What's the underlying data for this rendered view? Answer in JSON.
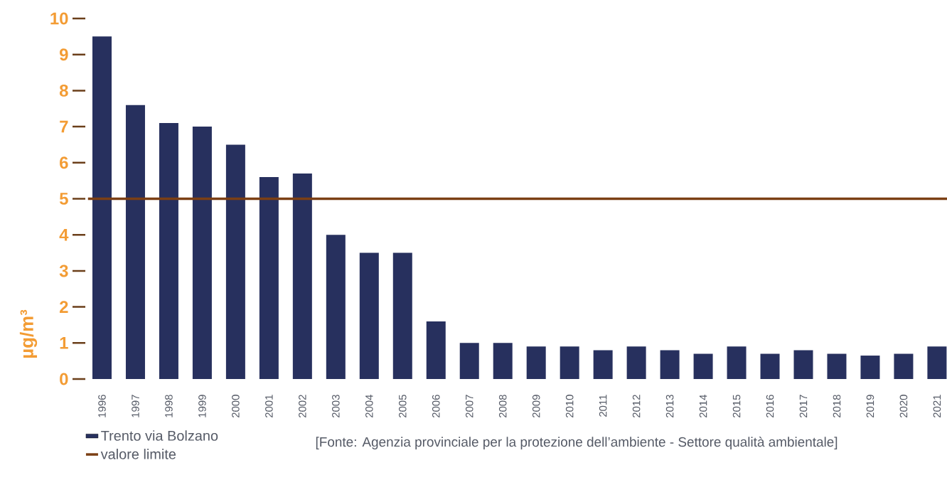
{
  "chart_data": {
    "type": "bar",
    "ylabel": "µg/m³",
    "categories": [
      "1996",
      "1997",
      "1998",
      "1999",
      "2000",
      "2001",
      "2002",
      "2003",
      "2004",
      "2005",
      "2006",
      "2007",
      "2008",
      "2009",
      "2010",
      "2011",
      "2012",
      "2013",
      "2014",
      "2015",
      "2016",
      "2017",
      "2018",
      "2019",
      "2020",
      "2021"
    ],
    "series": [
      {
        "name": "Trento via Bolzano",
        "color": "#27305e",
        "values": [
          9.5,
          7.6,
          7.1,
          7.0,
          6.5,
          5.6,
          5.7,
          4.0,
          3.5,
          3.5,
          1.6,
          1.0,
          1.0,
          0.9,
          0.9,
          0.8,
          0.9,
          0.8,
          0.7,
          0.9,
          0.7,
          0.8,
          0.7,
          0.65,
          0.7,
          0.9
        ]
      }
    ],
    "ylim": [
      0,
      10
    ],
    "yticks": [
      0,
      1,
      2,
      3,
      4,
      5,
      6,
      7,
      8,
      9,
      10
    ],
    "ref_lines": [
      {
        "axis": "y",
        "value": 5,
        "label": "valore limite",
        "color": "#7b3f14"
      }
    ],
    "legend": "bottom left",
    "annotations": [
      "[Fonte: Agenzia provinciale per la protezione dell’ambiente - Settore qualità ambientale]"
    ]
  }
}
